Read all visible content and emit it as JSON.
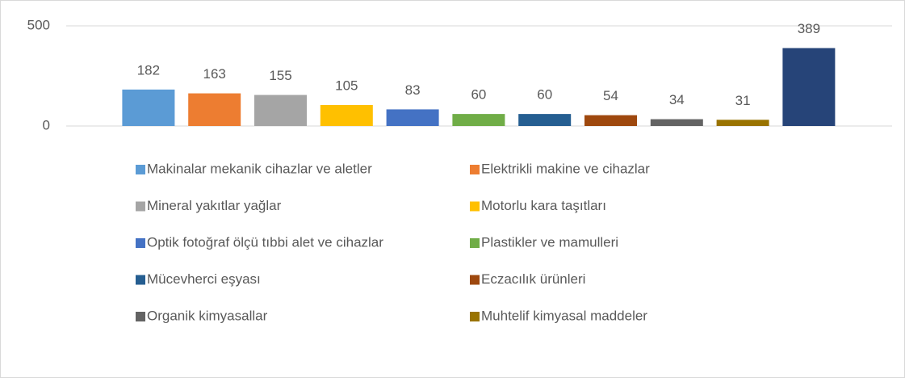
{
  "chart_data": {
    "type": "bar",
    "categories": [
      "Makinalar mekanik cihazlar ve aletler",
      "Elektrikli makine ve cihazlar",
      "Mineral yakıtlar yağlar",
      "Motorlu kara taşıtları",
      "Optik fotoğraf ölçü tıbbi alet ve cihazlar",
      "Plastikler ve mamulleri",
      "Mücevherci eşyası",
      "Eczacılık ürünleri",
      "Organik kimyasallar",
      "Muhtelif kimyasal maddeler",
      null
    ],
    "values": [
      182,
      163,
      155,
      105,
      83,
      60,
      60,
      54,
      34,
      31,
      389
    ],
    "colors": [
      "#5b9bd5",
      "#ed7d31",
      "#a5a5a5",
      "#ffc000",
      "#4472c4",
      "#70ad47",
      "#255e91",
      "#9e480e",
      "#636363",
      "#997300",
      "#264478"
    ],
    "ylim": [
      0,
      500
    ],
    "yticks": [
      0,
      500
    ],
    "grid": true
  }
}
